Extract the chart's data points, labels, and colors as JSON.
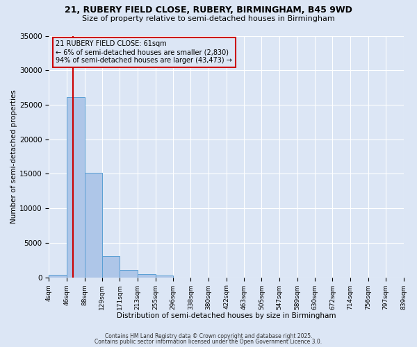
{
  "title_line1": "21, RUBERY FIELD CLOSE, RUBERY, BIRMINGHAM, B45 9WD",
  "title_line2": "Size of property relative to semi-detached houses in Birmingham",
  "xlabel": "Distribution of semi-detached houses by size in Birmingham",
  "ylabel": "Number of semi-detached properties",
  "bin_edges": [
    4,
    46,
    88,
    129,
    171,
    213,
    255,
    296,
    338,
    380,
    422,
    463,
    505,
    547,
    589,
    630,
    672,
    714,
    756,
    797,
    839
  ],
  "bar_heights": [
    400,
    26100,
    15200,
    3100,
    1100,
    500,
    300,
    0,
    0,
    0,
    0,
    0,
    0,
    0,
    0,
    0,
    0,
    0,
    0,
    0
  ],
  "bar_color": "#aec6e8",
  "bar_edgecolor": "#5a9fd4",
  "property_size": 61,
  "property_line_color": "#cc0000",
  "annotation_text": "21 RUBERY FIELD CLOSE: 61sqm\n← 6% of semi-detached houses are smaller (2,830)\n94% of semi-detached houses are larger (43,473) →",
  "annotation_box_color": "#cc0000",
  "ylim": [
    0,
    35000
  ],
  "yticks": [
    0,
    5000,
    10000,
    15000,
    20000,
    25000,
    30000,
    35000
  ],
  "background_color": "#dce6f5",
  "grid_color": "#ffffff",
  "footer_line1": "Contains HM Land Registry data © Crown copyright and database right 2025.",
  "footer_line2": "Contains public sector information licensed under the Open Government Licence 3.0."
}
